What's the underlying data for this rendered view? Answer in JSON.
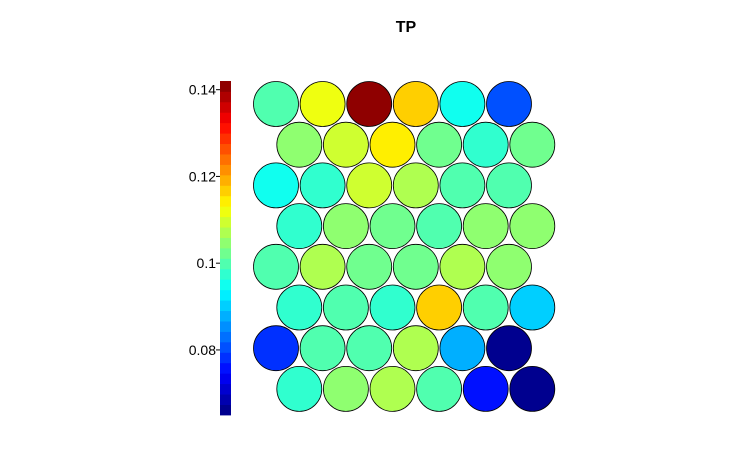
{
  "chart_data": {
    "type": "heatmap",
    "layout": "hexagonal-som",
    "title": "TP",
    "colorbar": {
      "min": 0.065,
      "max": 0.142,
      "ticks": [
        {
          "value": 0.14,
          "label": "0.14"
        },
        {
          "value": 0.12,
          "label": "0.12"
        },
        {
          "value": 0.1,
          "label": "0.1"
        },
        {
          "value": 0.08,
          "label": "0.08"
        }
      ],
      "colormap": "jet",
      "steps": 32
    },
    "rows": [
      [
        0.101,
        0.112,
        0.142,
        0.116,
        0.095,
        0.08
      ],
      [
        0.104,
        0.11,
        0.114,
        0.102,
        0.098,
        0.103
      ],
      [
        0.094,
        0.097,
        0.109,
        0.106,
        0.101,
        0.1
      ],
      [
        0.097,
        0.105,
        0.103,
        0.101,
        0.104,
        0.105
      ],
      [
        0.101,
        0.106,
        0.102,
        0.102,
        0.108,
        0.104
      ],
      [
        0.098,
        0.1,
        0.098,
        0.116,
        0.101,
        0.09
      ],
      [
        0.079,
        0.1,
        0.101,
        0.107,
        0.088,
        0.066
      ],
      [
        0.097,
        0.105,
        0.108,
        0.1,
        0.077,
        0.066
      ]
    ]
  }
}
